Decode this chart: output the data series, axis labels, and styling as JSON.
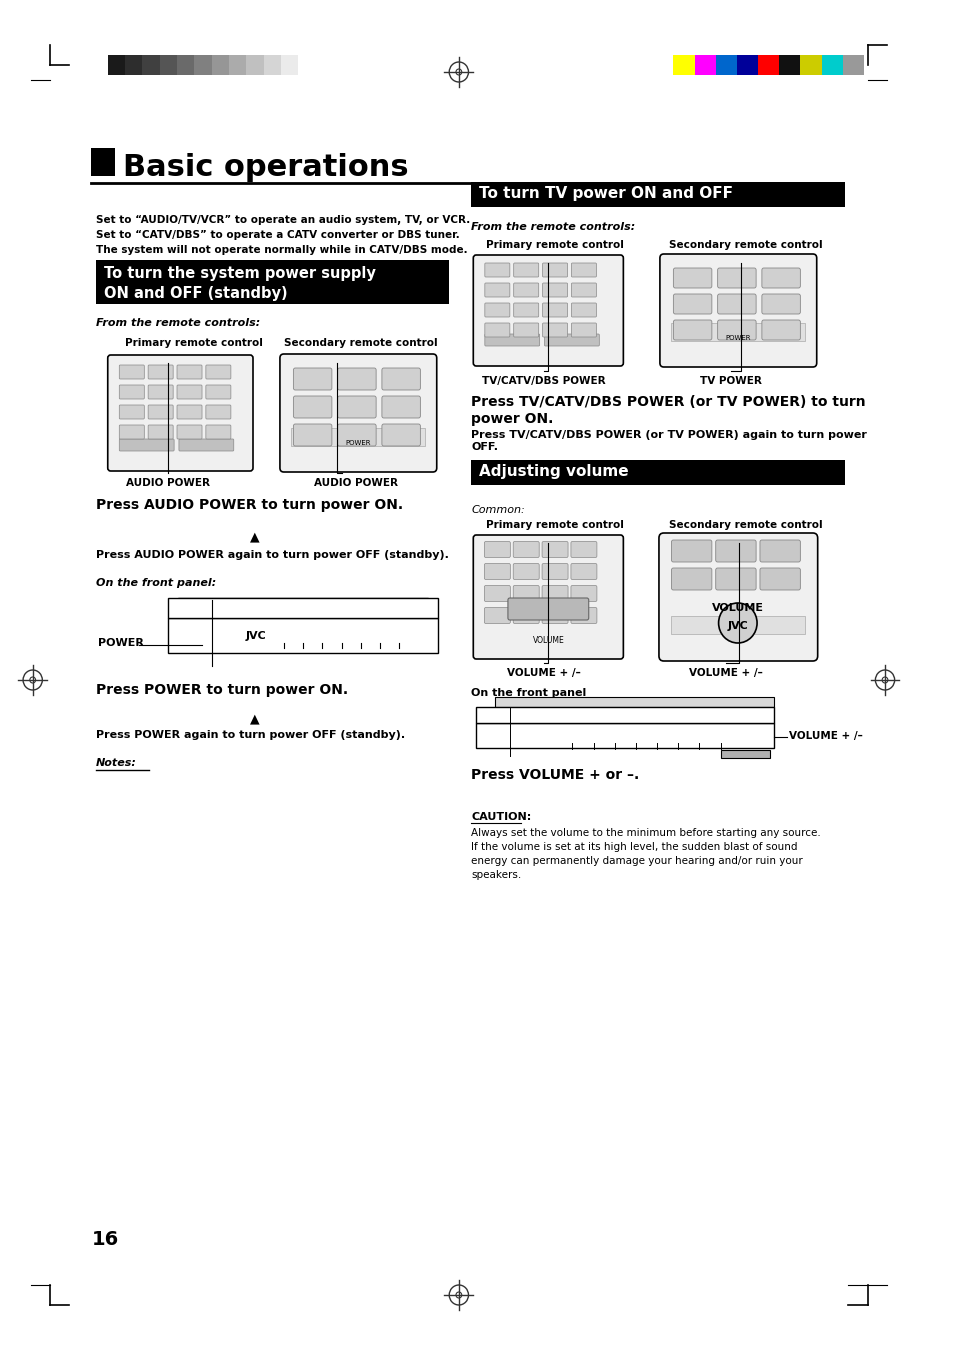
{
  "page_bg": "#ffffff",
  "title": "Basic operations",
  "page_number": "16",
  "left_column": {
    "intro_text": [
      "Set to “AUDIO/TV/VCR” to operate an audio system, TV, or VCR.",
      "Set to “CATV/DBS” to operate a CATV converter or DBS tuner.",
      "The system will not operate normally while in CATV/DBS mode."
    ],
    "section1_title": "To turn the system power supply\nON and OFF (standby)",
    "from_remote": "From the remote controls:",
    "primary_label": "Primary remote control",
    "secondary_label": "Secondary remote control",
    "audio_power_label1": "AUDIO POWER",
    "audio_power_label2": "AUDIO POWER",
    "press1": "Press AUDIO POWER to turn power ON.",
    "press2": "Press AUDIO POWER again to turn power OFF (standby).",
    "front_panel_label": "On the front panel:",
    "power_label": "POWER",
    "press3": "Press POWER to turn power ON.",
    "press4": "Press POWER again to turn power OFF (standby).",
    "notes_label": "Notes:"
  },
  "right_column": {
    "section2_title": "To turn TV power ON and OFF",
    "from_remote": "From the remote controls:",
    "primary_label": "Primary remote control",
    "secondary_label": "Secondary remote control",
    "tv_catv_label": "TV/CATV/DBS POWER",
    "tv_power_label": "TV POWER",
    "press_tv1": "Press TV/CATV/DBS POWER (or TV POWER) to turn\npower ON.",
    "press_tv2": "Press TV/CATV/DBS POWER (or TV POWER) again to turn power\nOFF.",
    "section3_title": "Adjusting volume",
    "common_label": "Common:",
    "primary_label2": "Primary remote control",
    "secondary_label2": "Secondary remote control",
    "volume_label1": "VOLUME + /–",
    "volume_label2": "VOLUME + /–",
    "front_panel2": "On the front panel",
    "volume_label3": "VOLUME + /–",
    "press_vol": "Press VOLUME + or –.",
    "caution_title": "CAUTION:",
    "caution_text": "Always set the volume to the minimum before starting any source.\nIf the volume is set at its high level, the sudden blast of sound\nenergy can permanently damage your hearing and/or ruin your\nspeakers."
  },
  "header_grayscale_colors": [
    "#1a1a1a",
    "#2d2d2d",
    "#404040",
    "#555555",
    "#6a6a6a",
    "#808080",
    "#969696",
    "#ababab",
    "#c0c0c0",
    "#d5d5d5",
    "#ebebeb",
    "#ffffff"
  ],
  "header_color_bars": [
    "#ffff00",
    "#ff00ff",
    "#0066cc",
    "#000099",
    "#ff0000",
    "#111111",
    "#cccc00",
    "#00cccc",
    "#999999"
  ],
  "crosshair_color": "#333333"
}
